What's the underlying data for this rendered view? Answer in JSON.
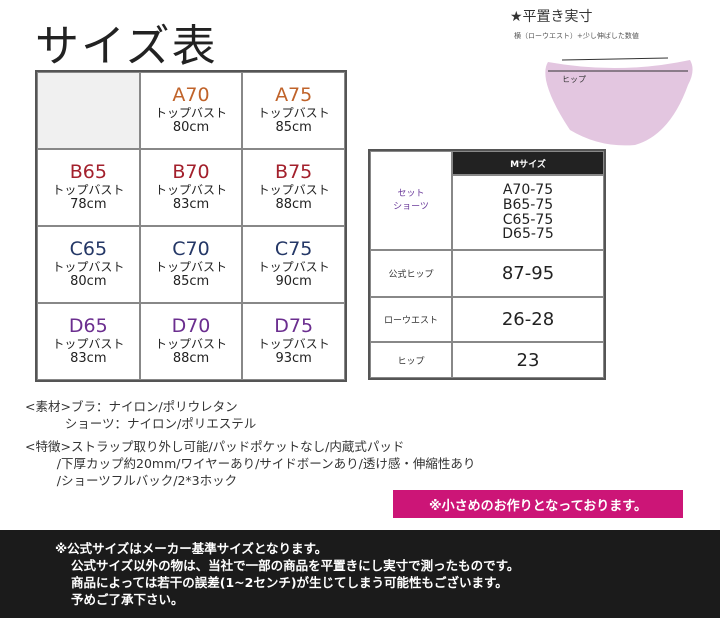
{
  "title": "サイズ表",
  "illustration": {
    "heading": "★平置き実寸",
    "caption": "横（ローウエスト）+少し伸ばした数値",
    "hip_label": "ヒップ",
    "shape_color": "#e3c6e0"
  },
  "bra_grid": {
    "label": "トップバスト",
    "colors": {
      "A": "#c0632a",
      "B": "#a3202c",
      "C": "#243766",
      "D": "#6b2e8f"
    },
    "rows": [
      [
        null,
        {
          "cup": "A70",
          "bust": "80cm"
        },
        {
          "cup": "A75",
          "bust": "85cm"
        }
      ],
      [
        {
          "cup": "B65",
          "bust": "78cm"
        },
        {
          "cup": "B70",
          "bust": "83cm"
        },
        {
          "cup": "B75",
          "bust": "88cm"
        }
      ],
      [
        {
          "cup": "C65",
          "bust": "80cm"
        },
        {
          "cup": "C70",
          "bust": "85cm"
        },
        {
          "cup": "C75",
          "bust": "90cm"
        }
      ],
      [
        {
          "cup": "D65",
          "bust": "83cm"
        },
        {
          "cup": "D70",
          "bust": "88cm"
        },
        {
          "cup": "D75",
          "bust": "93cm"
        }
      ]
    ]
  },
  "shorts_table": {
    "header": "Mサイズ",
    "set_label_1": "セット",
    "set_label_2": "ショーツ",
    "set_sizes": [
      "A70-75",
      "B65-75",
      "C65-75",
      "D65-75"
    ],
    "rows": [
      {
        "label": "公式ヒップ",
        "value": "87-95"
      },
      {
        "label": "ローウエスト",
        "value": "26-28"
      },
      {
        "label": "ヒップ",
        "value": "23"
      }
    ]
  },
  "materials": {
    "line1": "<素材>ブラ：ナイロン/ポリウレタン",
    "line2": "          ショーツ：ナイロン/ポリエステル",
    "line3": "<特徴>ストラップ取り外し可能/パッドポケットなし/内蔵式パッド",
    "line4": "        /下厚カップ約20mm/ワイヤーあり/サイドボーンあり/透け感・伸縮性あり",
    "line5": "        /ショーツフルバック/2*3ホック"
  },
  "notice": "※小さめのお作りとなっております。",
  "footer": {
    "line1": "※公式サイズはメーカー基準サイズとなります。",
    "line2": "公式サイズ以外の物は、当社で一部の商品を平置きにし実寸で測ったものです。",
    "line3": "商品によっては若干の誤差(1~2センチ)が生じてしまう可能性もございます。",
    "line4": "予めご了承下さい。"
  }
}
